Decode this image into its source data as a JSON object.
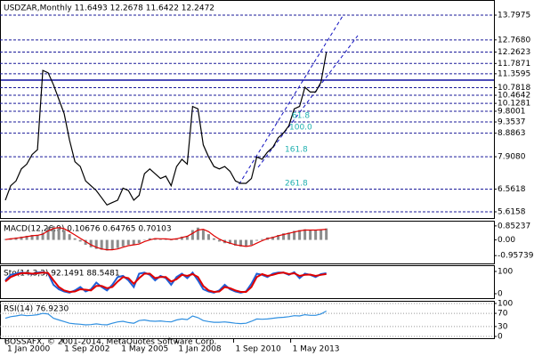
{
  "chart_data": [
    {
      "type": "line",
      "title": "USDZAR,Monthly  11.6493 12.2678 11.6422 12.2472",
      "x": [
        "2000-01-01",
        "2000-04-01",
        "2000-07-01",
        "2000-10-01",
        "2001-01-01",
        "2001-04-01",
        "2001-07-01",
        "2001-10-01",
        "2002-01-01",
        "2002-04-01",
        "2002-07-01",
        "2002-10-01",
        "2003-01-01",
        "2003-04-01",
        "2003-07-01",
        "2003-10-01",
        "2004-01-01",
        "2004-04-01",
        "2004-07-01",
        "2004-10-01",
        "2005-01-01",
        "2005-04-01",
        "2005-07-01",
        "2005-10-01",
        "2006-01-01",
        "2006-04-01",
        "2006-07-01",
        "2006-10-01",
        "2007-01-01",
        "2007-04-01",
        "2007-07-01",
        "2007-10-01",
        "2008-01-01",
        "2008-04-01",
        "2008-07-01",
        "2008-10-01",
        "2009-01-01",
        "2009-04-01",
        "2009-07-01",
        "2009-10-01",
        "2010-01-01",
        "2010-04-01",
        "2010-07-01",
        "2010-10-01",
        "2011-01-01",
        "2011-04-01",
        "2011-07-01",
        "2011-10-01",
        "2012-01-01",
        "2012-04-01",
        "2012-07-01",
        "2012-10-01",
        "2013-01-01",
        "2013-04-01",
        "2013-07-01",
        "2013-10-01",
        "2014-01-01",
        "2014-04-01",
        "2014-07-01",
        "2014-10-01",
        "2015-01-01"
      ],
      "series": [
        {
          "color": "#000000",
          "values": [
            6.1,
            6.7,
            6.9,
            7.4,
            7.6,
            8.0,
            8.2,
            11.5,
            11.4,
            10.9,
            10.3,
            9.7,
            8.6,
            7.7,
            7.5,
            6.9,
            6.7,
            6.5,
            6.2,
            5.9,
            6.0,
            6.1,
            6.6,
            6.5,
            6.1,
            6.3,
            7.2,
            7.4,
            7.2,
            7.0,
            7.1,
            6.7,
            7.5,
            7.8,
            7.6,
            10.0,
            9.9,
            8.4,
            7.9,
            7.5,
            7.4,
            7.5,
            7.3,
            6.9,
            6.8,
            6.8,
            7.0,
            7.9,
            7.8,
            8.1,
            8.3,
            8.7,
            8.9,
            9.2,
            9.9,
            10.0,
            10.8,
            10.6,
            10.6,
            11.0,
            12.2472
          ]
        }
      ],
      "xlim": [
        "1999-10-01",
        "2022-11-01"
      ],
      "xticks": [
        {
          "value": "2000-01-01",
          "label": "1 Jan 2000"
        },
        {
          "value": "2002-09-01",
          "label": "1 Sep 2002"
        },
        {
          "value": "2005-05-01",
          "label": "1 May 2005"
        },
        {
          "value": "2008-01-01",
          "label": "1 Jan 2008"
        },
        {
          "value": "2010-09-01",
          "label": "1 Sep 2010"
        },
        {
          "value": "2013-05-01",
          "label": "1 May 2013"
        }
      ],
      "ylim": [
        5.357,
        14.427
      ],
      "yticks": [
        13.7975,
        {
          "value": 12.768,
          "label": "12.7680"
        },
        12.2623,
        11.7871,
        11.3595,
        10.7818,
        10.4642,
        10.1281,
        9.8001,
        9.3537,
        8.8863,
        {
          "value": 7.908,
          "label": "7.9080"
        },
        6.5618,
        5.6158
      ],
      "grid": true,
      "annotations": [
        "161.8",
        "261.8",
        "100.0",
        "61.8"
      ]
    },
    {
      "type": "bar",
      "title": "MACD(12,26,9) 0.10676 0.64765 0.70103",
      "color": "#8c8c8c",
      "values": [
        0.05,
        0.1,
        0.15,
        0.2,
        0.25,
        0.3,
        0.3,
        0.45,
        0.8,
        0.85,
        0.75,
        0.6,
        0.35,
        0.1,
        -0.1,
        -0.3,
        -0.45,
        -0.55,
        -0.6,
        -0.65,
        -0.6,
        -0.5,
        -0.4,
        -0.3,
        -0.3,
        -0.2,
        0.0,
        0.1,
        0.1,
        0.05,
        0.05,
        0.0,
        0.1,
        0.2,
        0.25,
        0.6,
        0.75,
        0.6,
        0.35,
        0.1,
        -0.1,
        -0.2,
        -0.25,
        -0.35,
        -0.4,
        -0.4,
        -0.3,
        -0.05,
        0.05,
        0.15,
        0.2,
        0.3,
        0.4,
        0.45,
        0.55,
        0.6,
        0.65,
        0.6,
        0.6,
        0.65,
        0.7
      ],
      "series": [
        {
          "color": "#e00000",
          "values": [
            0.02,
            0.06,
            0.1,
            0.15,
            0.2,
            0.25,
            0.28,
            0.35,
            0.55,
            0.7,
            0.75,
            0.68,
            0.5,
            0.3,
            0.1,
            -0.1,
            -0.3,
            -0.45,
            -0.55,
            -0.6,
            -0.6,
            -0.55,
            -0.45,
            -0.35,
            -0.3,
            -0.25,
            -0.1,
            0.0,
            0.08,
            0.07,
            0.06,
            0.03,
            0.06,
            0.15,
            0.22,
            0.4,
            0.6,
            0.65,
            0.5,
            0.25,
            0.05,
            -0.1,
            -0.2,
            -0.3,
            -0.35,
            -0.4,
            -0.35,
            -0.2,
            -0.05,
            0.08,
            0.15,
            0.25,
            0.33,
            0.4,
            0.48,
            0.55,
            0.6,
            0.6,
            0.6,
            0.62,
            0.65
          ]
        }
      ],
      "ylim": [
        -1.436,
        1.17
      ],
      "yticks": [
        0.85237,
        {
          "value": 0,
          "label": "0.00"
        },
        -0.95739
      ],
      "grid": false
    },
    {
      "type": "line",
      "title": "Sto(14,3,3) 92.1491 88.5481",
      "series": [
        {
          "color": "#1f5fd6",
          "values": [
            60,
            85,
            90,
            95,
            92,
            88,
            95,
            97,
            90,
            40,
            20,
            10,
            5,
            15,
            30,
            10,
            20,
            50,
            30,
            15,
            40,
            75,
            80,
            60,
            30,
            90,
            95,
            85,
            60,
            80,
            70,
            40,
            75,
            90,
            70,
            95,
            60,
            20,
            10,
            5,
            15,
            40,
            20,
            10,
            5,
            10,
            45,
            90,
            85,
            75,
            90,
            95,
            95,
            85,
            97,
            70,
            90,
            85,
            75,
            88,
            92
          ]
        },
        {
          "color": "#e00000",
          "values": [
            55,
            75,
            85,
            92,
            93,
            90,
            92,
            95,
            93,
            60,
            30,
            15,
            8,
            10,
            20,
            18,
            15,
            35,
            35,
            25,
            30,
            55,
            75,
            70,
            45,
            70,
            90,
            90,
            70,
            75,
            75,
            55,
            65,
            85,
            80,
            88,
            75,
            35,
            15,
            8,
            10,
            30,
            25,
            15,
            8,
            8,
            30,
            75,
            88,
            80,
            85,
            92,
            95,
            88,
            92,
            80,
            85,
            86,
            80,
            85,
            88.5
          ]
        }
      ],
      "ylim": [
        -20,
        128
      ],
      "yticks": [
        100,
        0
      ],
      "grid": false
    },
    {
      "type": "line",
      "title": "RSI(14) 76.9230",
      "series": [
        {
          "color": "#2f8fe0",
          "values": [
            55,
            60,
            62,
            65,
            63,
            64,
            66,
            70,
            68,
            55,
            50,
            45,
            40,
            38,
            37,
            35,
            36,
            38,
            36,
            35,
            40,
            44,
            46,
            42,
            40,
            48,
            50,
            47,
            46,
            47,
            45,
            44,
            50,
            53,
            51,
            62,
            57,
            48,
            45,
            43,
            43,
            44,
            42,
            40,
            39,
            40,
            46,
            53,
            52,
            53,
            55,
            57,
            58,
            60,
            63,
            62,
            66,
            64,
            64,
            68,
            76.923
          ]
        }
      ],
      "ylim": [
        -5.4,
        108
      ],
      "yticks": [
        100,
        70,
        30,
        0
      ],
      "grid": true
    }
  ],
  "footer": "BOSSAFX, © 2001-2014, MetaQuotes Software Corp."
}
